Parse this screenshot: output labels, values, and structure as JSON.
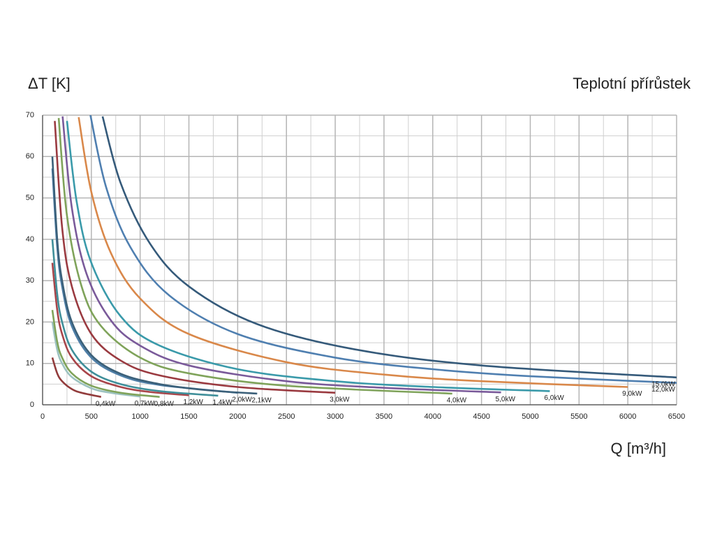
{
  "chart_data": {
    "type": "line",
    "title": "Teplotní přírůstek",
    "y_label": "ΔT [K]",
    "x_label": "Q [m³/h]",
    "xlim": [
      0,
      6500
    ],
    "ylim": [
      0,
      70
    ],
    "xticks": [
      0,
      500,
      1000,
      1500,
      2000,
      2500,
      3000,
      3500,
      4000,
      4500,
      5000,
      5500,
      6000,
      6500
    ],
    "yticks": [
      0,
      10,
      20,
      30,
      40,
      50,
      60,
      70
    ],
    "grid": true,
    "series": [
      {
        "name": "0,4kW",
        "color": "#923c3c",
        "x": [
          100,
          150,
          200,
          300,
          400,
          600
        ],
        "values": [
          11.4,
          7.6,
          5.7,
          3.8,
          2.9,
          1.9
        ]
      },
      {
        "name": "0,7kW",
        "color": "#9cc2c0",
        "x": [
          100,
          150,
          200,
          300,
          500,
          700,
          1000
        ],
        "values": [
          20,
          13.3,
          10,
          6.7,
          4,
          2.9,
          2
        ]
      },
      {
        "name": "0,8kW",
        "color": "#7fa35a",
        "x": [
          100,
          150,
          200,
          300,
          500,
          800,
          1200
        ],
        "values": [
          22.9,
          15.2,
          11.4,
          7.6,
          4.6,
          2.9,
          1.9
        ]
      },
      {
        "name": "1,2kW",
        "color": "#a8454a",
        "x": [
          100,
          150,
          200,
          300,
          500,
          800,
          1100,
          1500
        ],
        "values": [
          34.3,
          22.9,
          17.1,
          11.4,
          6.9,
          4.3,
          3.1,
          2.3
        ]
      },
      {
        "name": "1,4kW",
        "color": "#3f8f9a",
        "x": [
          100,
          150,
          200,
          300,
          500,
          800,
          1200,
          1800
        ],
        "values": [
          40,
          26.7,
          20,
          13.3,
          8,
          5,
          3.3,
          2.2
        ]
      },
      {
        "name": "2,0kW",
        "color": "#4f7fa8",
        "x": [
          100,
          150,
          200,
          300,
          500,
          800,
          1200,
          2000
        ],
        "values": [
          57.1,
          38.1,
          28.6,
          19,
          11.4,
          7.1,
          4.8,
          2.9
        ]
      },
      {
        "name": "2,1kW",
        "color": "#3b6079",
        "x": [
          100,
          150,
          200,
          300,
          500,
          800,
          1200,
          1700,
          2200
        ],
        "values": [
          60,
          40,
          30,
          20,
          12,
          7.5,
          5,
          3.5,
          2.7
        ]
      },
      {
        "name": "3,0kW",
        "color": "#9a3a40",
        "x": [
          125,
          200,
          300,
          500,
          800,
          1200,
          2000,
          3000
        ],
        "values": [
          68.6,
          42.9,
          28.6,
          17.1,
          10.7,
          7.1,
          4.3,
          2.9
        ]
      },
      {
        "name": "4,0kW",
        "color": "#7fa35a",
        "x": [
          165,
          250,
          400,
          600,
          1000,
          1500,
          2500,
          4200
        ],
        "values": [
          69.3,
          45.7,
          28.6,
          19,
          11.4,
          7.6,
          4.6,
          2.7
        ]
      },
      {
        "name": "5,0kW",
        "color": "#7a5a9a",
        "x": [
          205,
          300,
          450,
          700,
          1000,
          1500,
          2500,
          3500,
          4700
        ],
        "values": [
          69.7,
          47.6,
          31.7,
          20.4,
          14.3,
          9.5,
          5.7,
          4.1,
          3
        ]
      },
      {
        "name": "6,0kW",
        "color": "#3a9aaa",
        "x": [
          250,
          350,
          500,
          800,
          1200,
          2000,
          3000,
          4000,
          5200
        ],
        "values": [
          68.6,
          49,
          34.3,
          21.4,
          14.3,
          8.6,
          5.7,
          4.3,
          3.3
        ]
      },
      {
        "name": "9,0kW",
        "color": "#d9884a",
        "x": [
          370,
          500,
          700,
          1000,
          1500,
          2500,
          3500,
          4500,
          6000
        ],
        "values": [
          69.5,
          51.4,
          36.7,
          25.7,
          17.1,
          10.3,
          7.3,
          5.7,
          4.3
        ]
      },
      {
        "name": "12,0kW",
        "color": "#4f7fb0",
        "x": [
          490,
          650,
          900,
          1300,
          2000,
          3000,
          4000,
          5000,
          6500
        ],
        "values": [
          70,
          52.7,
          38.1,
          26.4,
          17.1,
          11.4,
          8.6,
          6.9,
          5.3
        ]
      },
      {
        "name": "15,0kW",
        "color": "#355a7a",
        "x": [
          615,
          800,
          1100,
          1500,
          2200,
          3200,
          4500,
          6500
        ],
        "values": [
          69.7,
          53.6,
          39,
          28.6,
          19.5,
          13.4,
          9.5,
          6.6
        ]
      }
    ]
  }
}
